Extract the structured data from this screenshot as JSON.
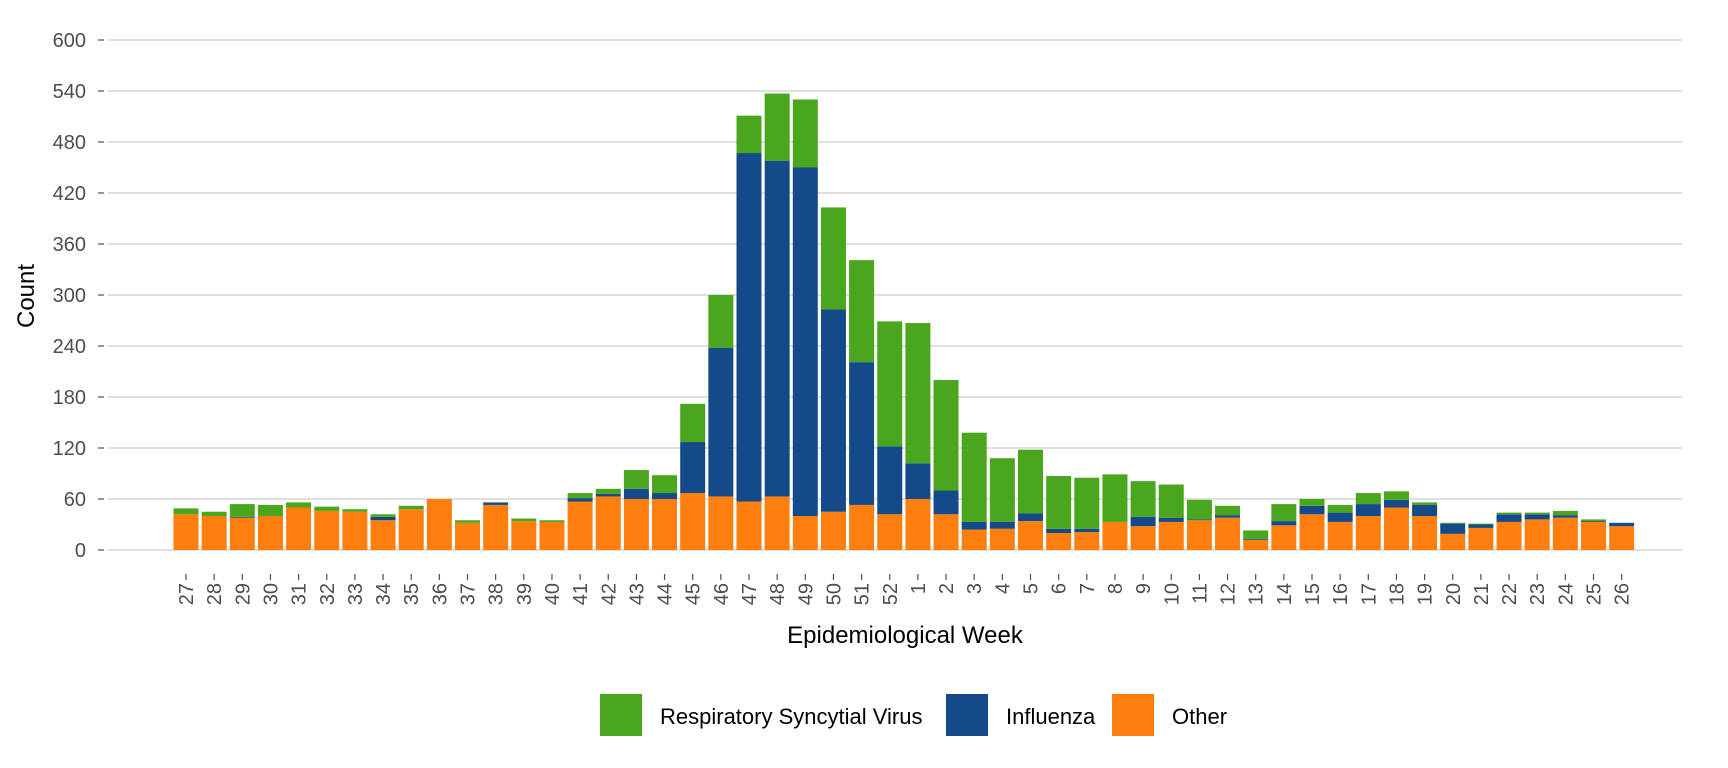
{
  "chart_data": {
    "type": "bar",
    "stacked": true,
    "title": "",
    "xlabel": "Epidemiological Week",
    "ylabel": "Count",
    "ylim": [
      0,
      600
    ],
    "yticks": [
      0,
      60,
      120,
      180,
      240,
      300,
      360,
      420,
      480,
      540,
      600
    ],
    "grid": "horizontal",
    "legend_position": "bottom",
    "categories": [
      "27",
      "28",
      "29",
      "30",
      "31",
      "32",
      "33",
      "34",
      "35",
      "36",
      "37",
      "38",
      "39",
      "40",
      "41",
      "42",
      "43",
      "44",
      "45",
      "46",
      "47",
      "48",
      "49",
      "50",
      "51",
      "52",
      "1",
      "2",
      "3",
      "4",
      "5",
      "6",
      "7",
      "8",
      "9",
      "10",
      "11",
      "12",
      "13",
      "14",
      "15",
      "16",
      "17",
      "18",
      "19",
      "20",
      "21",
      "22",
      "23",
      "24",
      "25",
      "26"
    ],
    "series": [
      {
        "name": "Other",
        "color": "#ff7f0e",
        "values": [
          42,
          40,
          38,
          40,
          50,
          46,
          45,
          35,
          48,
          60,
          32,
          53,
          34,
          33,
          57,
          63,
          60,
          60,
          67,
          63,
          57,
          63,
          40,
          45,
          53,
          42,
          60,
          42,
          24,
          25,
          34,
          20,
          21,
          33,
          28,
          33,
          35,
          38,
          12,
          29,
          42,
          33,
          40,
          50,
          40,
          19,
          26,
          33,
          36,
          38,
          33,
          28
        ]
      },
      {
        "name": "Influenza",
        "color": "#154a8a",
        "values": [
          0,
          0,
          1,
          0,
          0,
          0,
          0,
          4,
          0,
          0,
          0,
          3,
          0,
          0,
          4,
          3,
          12,
          7,
          60,
          175,
          410,
          395,
          410,
          238,
          168,
          80,
          42,
          28,
          9,
          8,
          9,
          5,
          4,
          0,
          11,
          5,
          1,
          3,
          1,
          5,
          10,
          11,
          14,
          9,
          13,
          12,
          4,
          9,
          6,
          3,
          1,
          4
        ]
      },
      {
        "name": "Respiratory Syncytial Virus",
        "color": "#49a61d",
        "values": [
          7,
          5,
          15,
          13,
          6,
          5,
          3,
          3,
          4,
          0,
          3,
          0,
          3,
          2,
          6,
          6,
          22,
          21,
          45,
          62,
          44,
          79,
          80,
          120,
          120,
          147,
          165,
          130,
          105,
          75,
          75,
          62,
          60,
          56,
          42,
          39,
          23,
          11,
          10,
          20,
          8,
          9,
          13,
          10,
          3,
          1,
          1,
          2,
          2,
          5,
          2,
          0
        ]
      }
    ],
    "legend": [
      "Respiratory Syncytial Virus",
      "Influenza",
      "Other"
    ]
  }
}
